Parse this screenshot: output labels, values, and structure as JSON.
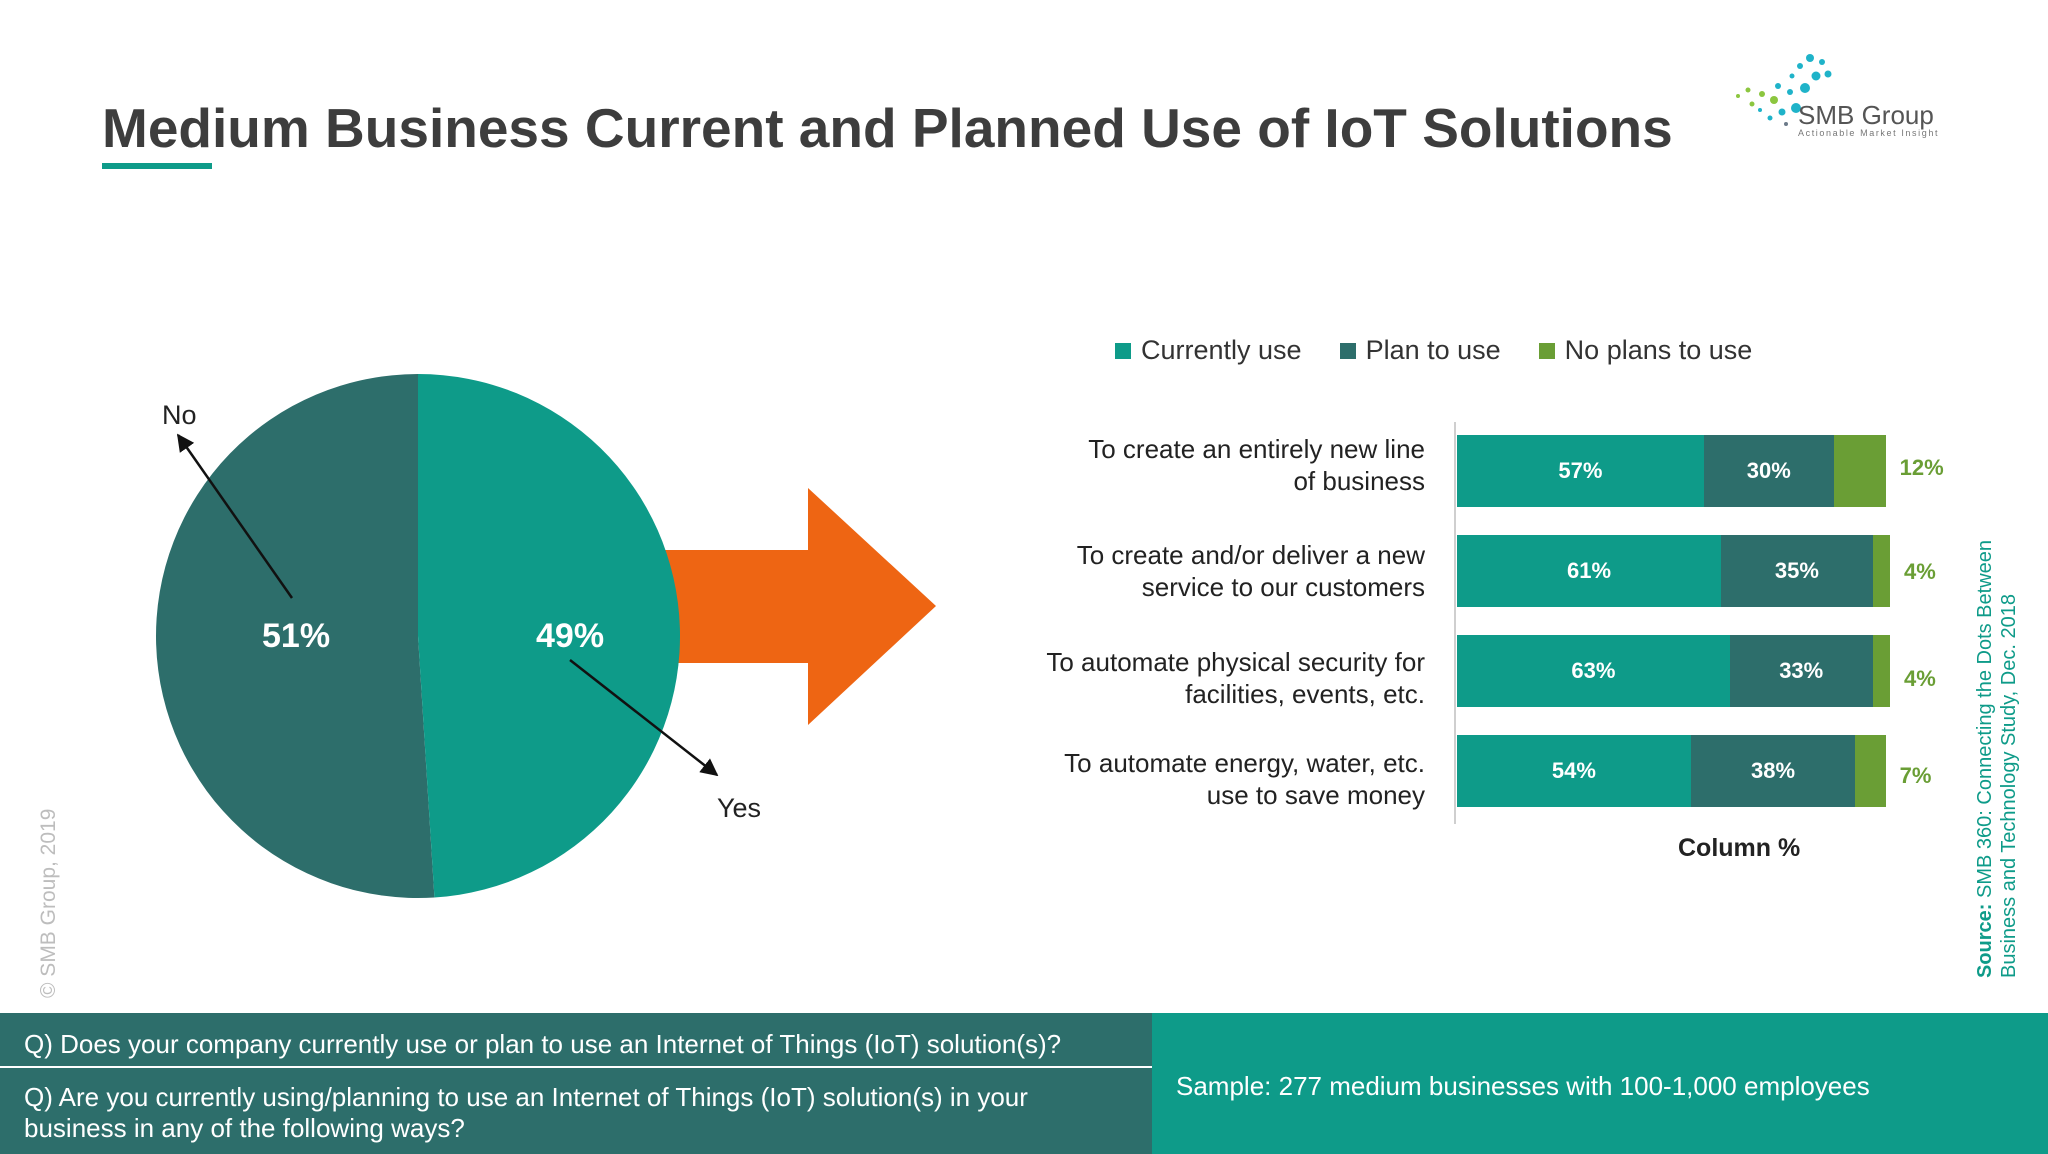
{
  "title": "Medium Business Current and Planned Use of IoT Solutions",
  "logo": {
    "name": "SMB Group",
    "tagline": "Actionable Market Insight"
  },
  "colors": {
    "current": "#0e9b89",
    "plan": "#2d6e6b",
    "noplan": "#6a9e35",
    "arrow": "#ee6513"
  },
  "chart_data": [
    {
      "type": "pie",
      "slices": [
        {
          "label": "Yes",
          "value": 49,
          "display": "49%"
        },
        {
          "label": "No",
          "value": 51,
          "display": "51%"
        }
      ]
    },
    {
      "type": "bar",
      "stacked": true,
      "orientation": "horizontal",
      "xlabel": "Column %",
      "legend_position": "top",
      "categories": [
        "To create an entirely new line of business",
        "To create and/or deliver a new service to our customers",
        "To automate physical security for facilities, events, etc.",
        "To automate energy, water, etc. use to save money"
      ],
      "category_lines": [
        [
          "To create an entirely new line",
          "of business"
        ],
        [
          "To create and/or deliver a new",
          "service to our customers"
        ],
        [
          "To automate physical security for",
          "facilities, events, etc."
        ],
        [
          "To automate energy, water, etc.",
          "use to save money"
        ]
      ],
      "series": [
        {
          "name": "Currently use",
          "values": [
            57,
            61,
            63,
            54
          ],
          "labels": [
            "57%",
            "61%",
            "63%",
            "54%"
          ]
        },
        {
          "name": "Plan to use",
          "values": [
            30,
            35,
            33,
            38
          ],
          "labels": [
            "30%",
            "35%",
            "33%",
            "38%"
          ]
        },
        {
          "name": "No plans to use",
          "values": [
            12,
            4,
            4,
            7
          ],
          "labels": [
            "12%",
            "4%",
            "4%",
            "7%"
          ]
        }
      ]
    }
  ],
  "source": {
    "line1_prefix": "Source:",
    "line1_text": " SMB 360: Connecting the Dots Between",
    "line2": "Business and Technology  Study, Dec. 2018"
  },
  "copyright": "© SMB Group, 2019",
  "footer": {
    "q1": "Q) Does your company currently use or plan to use an Internet of Things (IoT) solution(s)?",
    "q2": "Q) Are you currently using/planning to use an Internet of Things (IoT) solution(s) in your business in any of the following ways?",
    "sample": "Sample: 277 medium businesses with 100-1,000 employees"
  }
}
